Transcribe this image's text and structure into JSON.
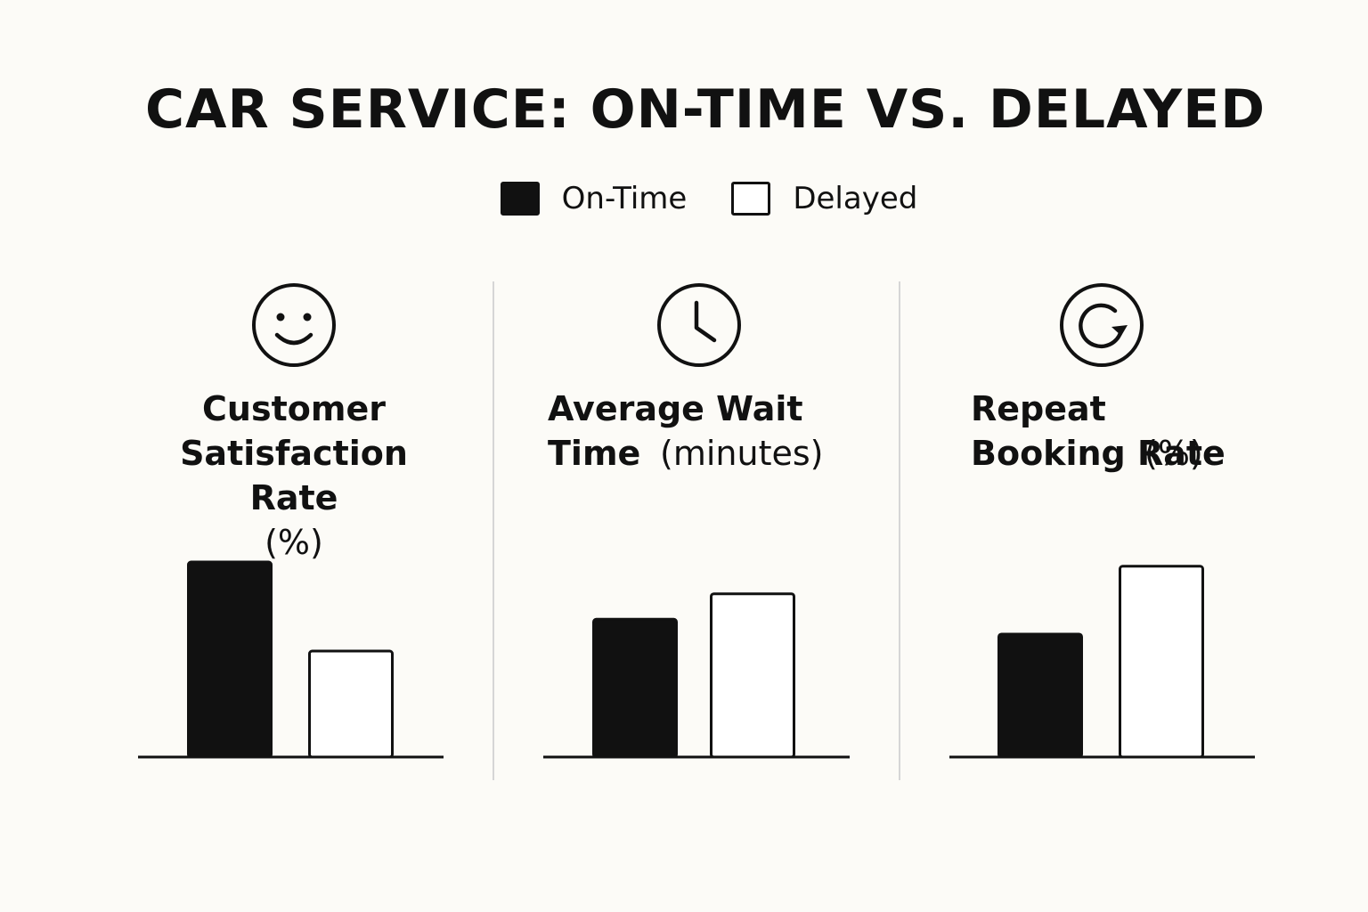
{
  "chart_data": {
    "title": "CAR SERVICE: ON-TIME VS. DELAYED",
    "type": "bar",
    "legend": {
      "placement": "top-center",
      "entries": [
        "On-Time",
        "Delayed"
      ]
    },
    "series": [
      {
        "name": "On-Time",
        "color": "#111111"
      },
      {
        "name": "Delayed",
        "color": "#ffffff"
      }
    ],
    "charts": [
      {
        "icon": "smiley-face-icon",
        "title_bold": "Customer Satisfaction Rate",
        "title_unit": "(%)",
        "values": [
          92,
          50
        ]
      },
      {
        "icon": "clock-icon",
        "title_bold": "Average Wait Time",
        "title_unit": "(minutes)",
        "values": [
          65,
          77
        ]
      },
      {
        "icon": "refresh-icon",
        "title_bold": "Repeat Booking Rate",
        "title_unit": "(%)",
        "values": [
          58,
          90
        ]
      }
    ],
    "grid": false,
    "axes_visible": false
  }
}
